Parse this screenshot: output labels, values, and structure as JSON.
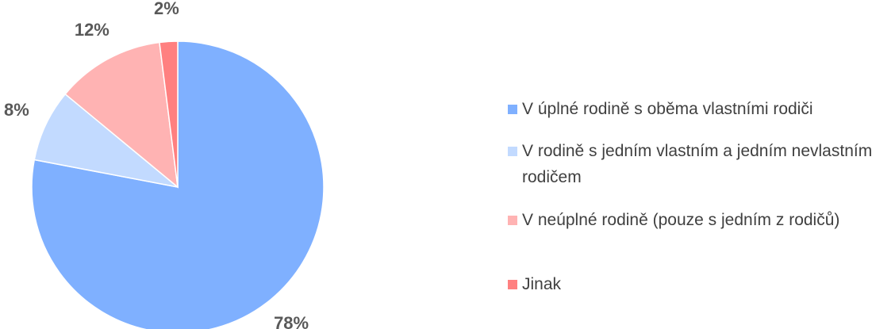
{
  "chart_data": {
    "type": "pie",
    "categories": [
      "V úplné rodině s oběma vlastními rodiči",
      "V rodině s jedním vlastním a jedním nevlastním rodičem",
      "V neúplné rodině (pouze s jedním z rodičů)",
      "Jinak"
    ],
    "values": [
      78,
      8,
      12,
      2
    ],
    "value_labels": [
      "78%",
      "8%",
      "12%",
      "2%"
    ],
    "colors": [
      "#7fb0ff",
      "#c2daff",
      "#ffb3b3",
      "#ff8080"
    ],
    "legend": "right"
  }
}
